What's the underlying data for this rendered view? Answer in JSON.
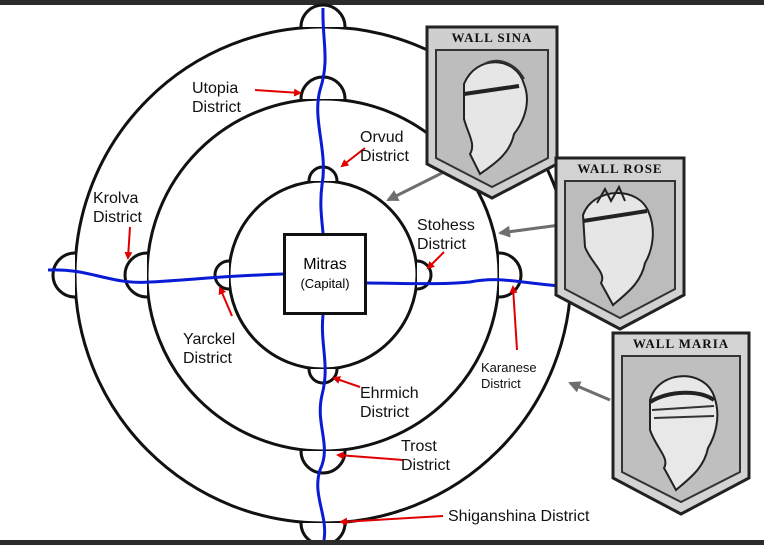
{
  "capital": {
    "name": "Mitras",
    "subtitle": "(Capital)"
  },
  "districts": {
    "utopia": [
      "Utopia",
      "District"
    ],
    "orvud": [
      "Orvud",
      "District"
    ],
    "krolva": [
      "Krolva",
      "District"
    ],
    "stohess": [
      "Stohess",
      "District"
    ],
    "yarckel": [
      "Yarckel",
      "District"
    ],
    "karanese": [
      "Karanese",
      "District"
    ],
    "ehrmich": [
      "Ehrmich",
      "District"
    ],
    "trost": [
      "Trost",
      "District"
    ],
    "shiganshina": "Shiganshina District"
  },
  "walls": {
    "sina": "WALL SINA",
    "rose": "WALL ROSE",
    "maria": "WALL MARIA"
  },
  "colors": {
    "river": "#0a1bd6",
    "pointer_arrow": "#e00000",
    "emblem_arrow": "#6e6e6e",
    "wall_line": "#111111"
  }
}
